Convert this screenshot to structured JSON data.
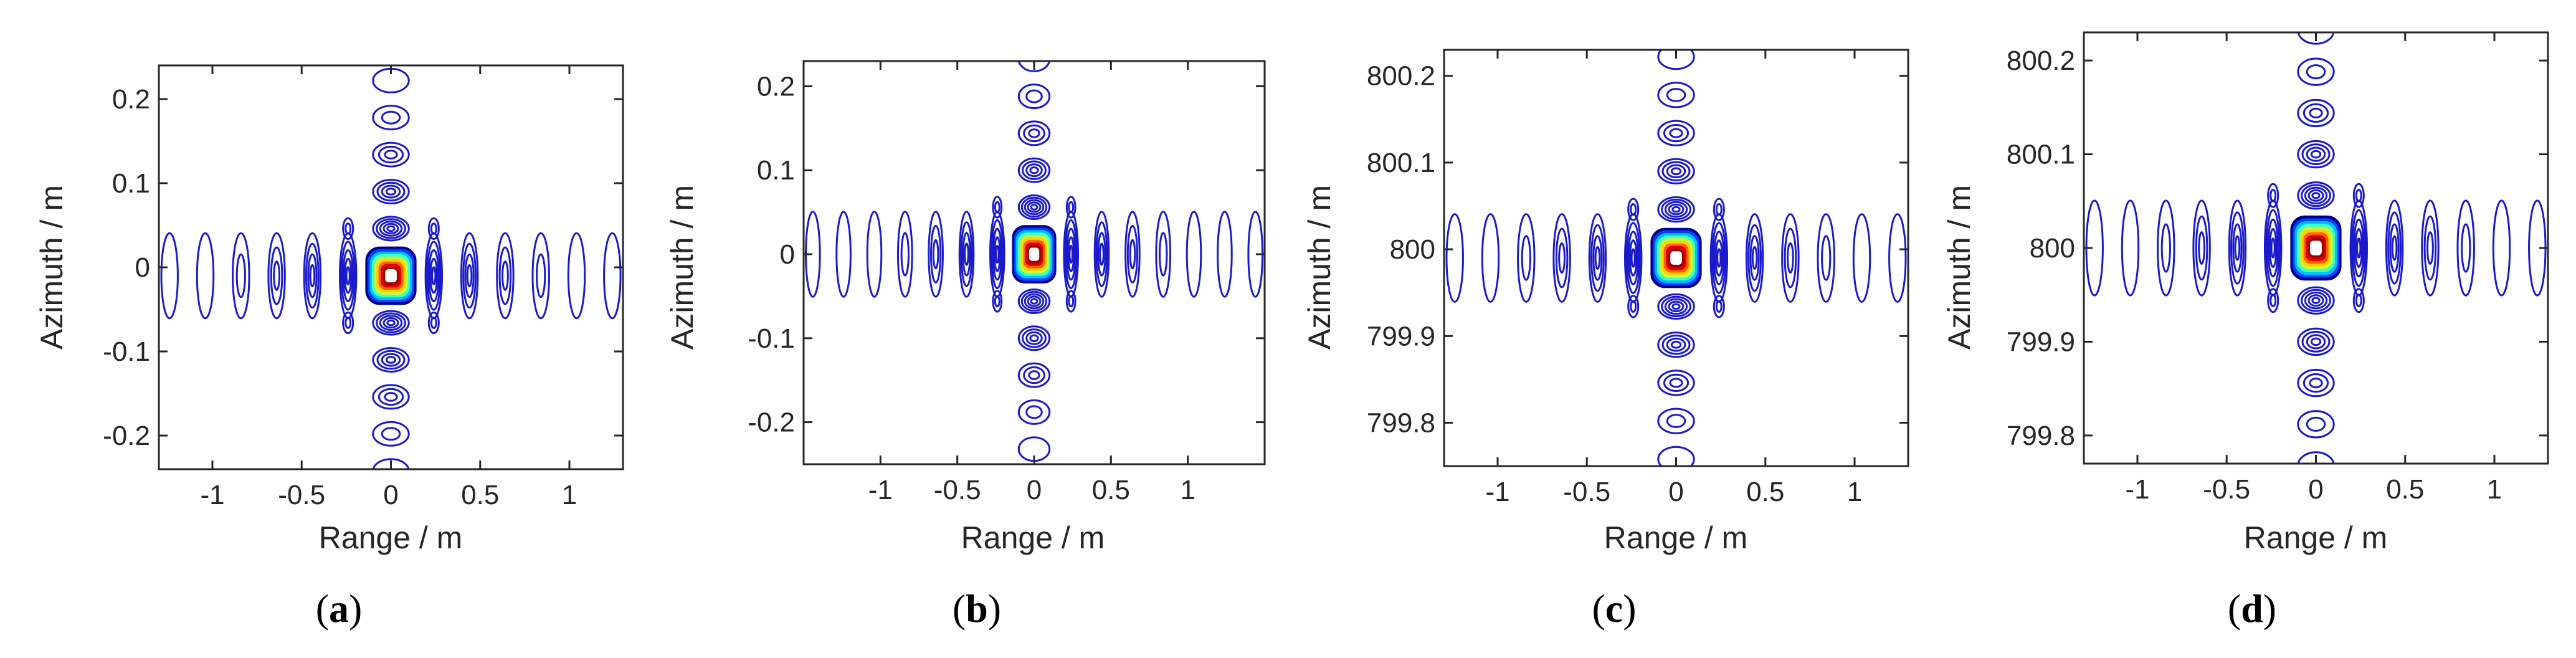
{
  "chart_data": [
    {
      "type": "contour",
      "panel": "(a)",
      "caption_letter": "a",
      "xlabel": "Range / m",
      "ylabel": "Azimuth / m",
      "xlim": [
        -1.3,
        1.3
      ],
      "ylim": [
        -0.24,
        0.24
      ],
      "xticks": [
        -1,
        -0.5,
        0,
        0.5,
        1
      ],
      "xtick_labels": [
        "-1",
        "-0.5",
        "0",
        "0.5",
        "1"
      ],
      "yticks": [
        -0.2,
        -0.1,
        0,
        0.1,
        0.2
      ],
      "ytick_labels": [
        "-0.2",
        "-0.1",
        "0",
        "0.1",
        "0.2"
      ],
      "peak": [
        0.0,
        -0.01
      ],
      "mainlobe_halfwidth": [
        0.14,
        0.034
      ],
      "sidelobe_spacing": [
        0.2,
        0.044
      ],
      "sidelobes_per_side": [
        6,
        6
      ],
      "contour_levels": 10
    },
    {
      "type": "contour",
      "panel": "(b)",
      "caption_letter": "b",
      "xlabel": "Range / m",
      "ylabel": "Azimuth / m",
      "xlim": [
        -1.5,
        1.5
      ],
      "ylim": [
        -0.25,
        0.23
      ],
      "xticks": [
        -1,
        -0.5,
        0,
        0.5,
        1
      ],
      "xtick_labels": [
        "-1",
        "-0.5",
        "0",
        "0.5",
        "1"
      ],
      "yticks": [
        -0.2,
        -0.1,
        0,
        0.1,
        0.2
      ],
      "ytick_labels": [
        "-0.2",
        "-0.1",
        "0",
        "0.1",
        "0.2"
      ],
      "peak": [
        0.0,
        0.0
      ],
      "mainlobe_halfwidth": [
        0.14,
        0.034
      ],
      "sidelobe_spacing": [
        0.2,
        0.044
      ],
      "sidelobes_per_side": [
        7,
        6
      ],
      "contour_levels": 10
    },
    {
      "type": "contour",
      "panel": "(c)",
      "caption_letter": "c",
      "xlabel": "Range / m",
      "ylabel": "Azimuth / m",
      "xlim": [
        -1.3,
        1.3
      ],
      "ylim": [
        799.75,
        800.23
      ],
      "xticks": [
        -1,
        -0.5,
        0,
        0.5,
        1
      ],
      "xtick_labels": [
        "-1",
        "-0.5",
        "0",
        "0.5",
        "1"
      ],
      "yticks": [
        799.8,
        799.9,
        800,
        800.1,
        800.2
      ],
      "ytick_labels": [
        "799.8",
        "799.9",
        "800",
        "800.1",
        "800.2"
      ],
      "peak": [
        0.0,
        799.99
      ],
      "mainlobe_halfwidth": [
        0.14,
        0.034
      ],
      "sidelobe_spacing": [
        0.2,
        0.044
      ],
      "sidelobes_per_side": [
        6,
        6
      ],
      "contour_levels": 10
    },
    {
      "type": "contour",
      "panel": "(d)",
      "caption_letter": "d",
      "xlabel": "Range / m",
      "ylabel": "Azimuth / m",
      "xlim": [
        -1.3,
        1.3
      ],
      "ylim": [
        799.77,
        800.23
      ],
      "xticks": [
        -1,
        -0.5,
        0,
        0.5,
        1
      ],
      "xtick_labels": [
        "-1",
        "-0.5",
        "0",
        "0.5",
        "1"
      ],
      "yticks": [
        799.8,
        799.9,
        800,
        800.1,
        800.2
      ],
      "ytick_labels": [
        "799.8",
        "799.9",
        "800",
        "800.1",
        "800.2"
      ],
      "peak": [
        0.0,
        800.0
      ],
      "mainlobe_halfwidth": [
        0.14,
        0.034
      ],
      "sidelobe_spacing": [
        0.2,
        0.044
      ],
      "sidelobes_per_side": [
        6,
        5
      ],
      "contour_levels": 10
    }
  ],
  "colors": {
    "sidelobe_contour": "#1a1acc",
    "mainlobe_colormap": [
      "#00008f",
      "#0040ff",
      "#00c0ff",
      "#40ffbf",
      "#bfff40",
      "#ffd000",
      "#ff6000",
      "#e00000",
      "#a00000",
      "#ffffff"
    ],
    "axis": "#262626",
    "background": "#ffffff"
  }
}
